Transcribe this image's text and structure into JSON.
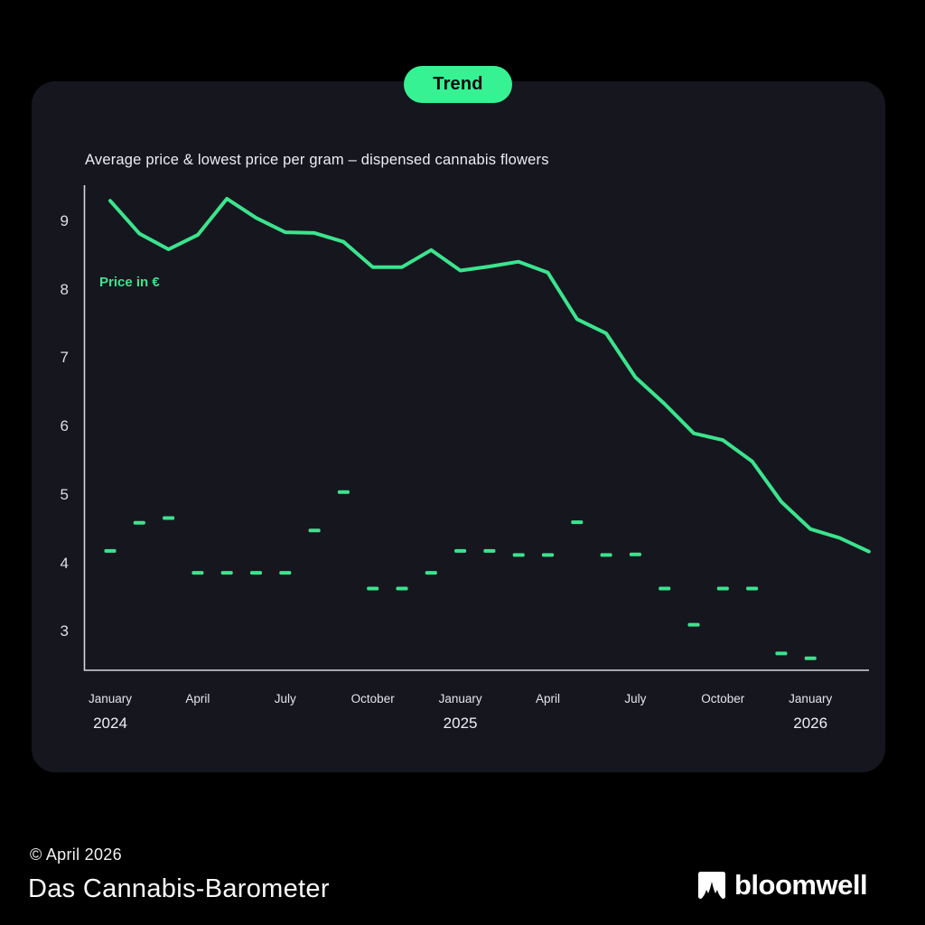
{
  "badge": {
    "label": "Trend"
  },
  "chart": {
    "title": "Average price & lowest price per gram – dispensed cannabis flowers",
    "y_axis_label": "Price in €"
  },
  "chart_data": {
    "type": "line",
    "title": "Average price & lowest price per gram – dispensed cannabis flowers",
    "xlabel": "",
    "ylabel": "Price in €",
    "ylim": [
      2.5,
      9.6
    ],
    "y_ticks": [
      9,
      8,
      7,
      6,
      5,
      4,
      3
    ],
    "grid": false,
    "legend_position": "none",
    "months": [
      "January 2024",
      "February 2024",
      "March 2024",
      "April 2024",
      "May 2024",
      "June 2024",
      "July 2024",
      "August 2024",
      "September 2024",
      "October 2024",
      "November 2024",
      "December 2024",
      "January 2025",
      "February 2025",
      "March 2025",
      "April 2025",
      "May 2025",
      "June 2025",
      "July 2025",
      "August 2025",
      "September 2025",
      "October 2025",
      "November 2025",
      "December 2025",
      "January 2026",
      "February 2026",
      "March 2026"
    ],
    "x_ticks": [
      {
        "index": 0,
        "label": "January",
        "year": "2024"
      },
      {
        "index": 3,
        "label": "April"
      },
      {
        "index": 6,
        "label": "July"
      },
      {
        "index": 9,
        "label": "October"
      },
      {
        "index": 12,
        "label": "January",
        "year": "2025"
      },
      {
        "index": 15,
        "label": "April"
      },
      {
        "index": 18,
        "label": "July"
      },
      {
        "index": 21,
        "label": "October"
      },
      {
        "index": 24,
        "label": "January",
        "year": "2026"
      }
    ],
    "series": [
      {
        "name": "Average price per gram (€)",
        "style": "line",
        "values": [
          9.3,
          8.82,
          8.59,
          8.8,
          9.33,
          9.05,
          8.84,
          8.83,
          8.7,
          8.33,
          8.33,
          8.58,
          8.28,
          8.34,
          8.41,
          8.25,
          7.57,
          7.36,
          6.72,
          6.33,
          5.9,
          5.8,
          5.49,
          4.9,
          4.5,
          4.37,
          4.17
        ]
      },
      {
        "name": "Lowest price per gram (€)",
        "style": "dash",
        "values": [
          4.18,
          4.59,
          4.66,
          3.86,
          3.86,
          3.86,
          3.86,
          4.48,
          5.04,
          3.63,
          3.63,
          3.86,
          4.18,
          4.18,
          4.12,
          4.12,
          4.6,
          4.12,
          4.13,
          3.63,
          3.1,
          3.63,
          3.63,
          2.68,
          2.61,
          null,
          null
        ]
      }
    ]
  },
  "footer": {
    "copyright": "© April 2026",
    "title": "Das Cannabis-Barometer",
    "brand": "bloomwell"
  },
  "colors": {
    "accent_line": "#3BE48D",
    "pill_green": "#36F293",
    "panel": "#16161F",
    "background": "#000000",
    "axis": "#D6D6DC"
  }
}
